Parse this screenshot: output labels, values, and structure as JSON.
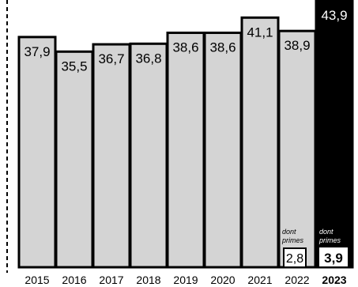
{
  "chart_data": {
    "type": "bar",
    "categories": [
      "2015",
      "2016",
      "2017",
      "2018",
      "2019",
      "2020",
      "2021",
      "2022",
      "2023"
    ],
    "values": [
      37.9,
      35.5,
      36.7,
      36.8,
      38.6,
      38.6,
      41.1,
      38.9,
      43.9
    ],
    "value_labels": [
      "37,9",
      "35,5",
      "36,7",
      "36,8",
      "38,6",
      "38,6",
      "41,1",
      "38,9",
      "43,9"
    ],
    "highlight_category": "2023",
    "insets": [
      {
        "category": "2022",
        "label_line1": "dont",
        "label_line2": "primes",
        "value": 2.8,
        "value_label": "2,8"
      },
      {
        "category": "2023",
        "label_line1": "dont",
        "label_line2": "primes",
        "value": 3.9,
        "value_label": "3,9"
      }
    ],
    "ylim": [
      0,
      44
    ],
    "colors": {
      "bar": "#d4d4d4",
      "highlight": "#000000",
      "outline": "#000000"
    }
  }
}
